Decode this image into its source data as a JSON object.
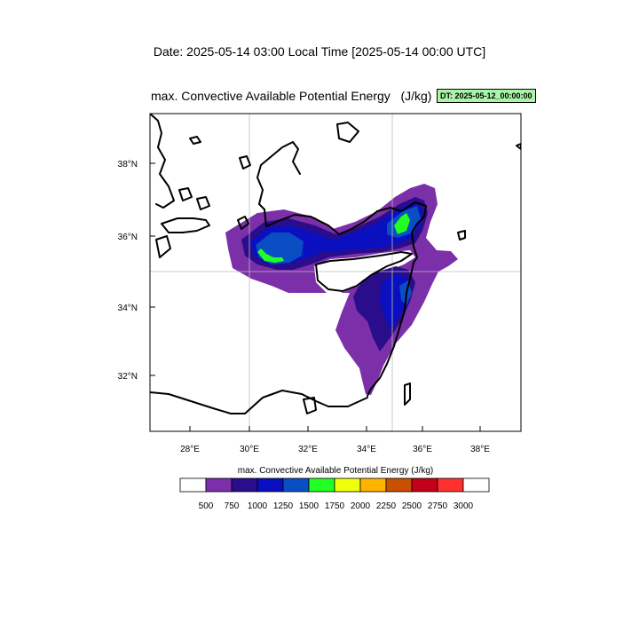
{
  "header": {
    "date_line": "Date: 2025-05-14  03:00 Local Time [2025-05-14  00:00 UTC]"
  },
  "plot": {
    "title": "max. Convective Available Potential Energy   (J/kg)",
    "badge": "DT: 2025-05-12_00:00:00"
  },
  "axes": {
    "lon_ticks": [
      "28°E",
      "30°E",
      "32°E",
      "34°E",
      "36°E",
      "38°E"
    ],
    "lat_ticks": [
      "38°N",
      "36°N",
      "34°N",
      "32°N"
    ],
    "grid_lons": [
      "30°E",
      "35°E"
    ],
    "grid_lats": [
      "35°N"
    ]
  },
  "colorbar": {
    "title": "max. Convective Available Potential Energy  (J/kg)",
    "labels": [
      "500",
      "750",
      "1000",
      "1250",
      "1500",
      "1750",
      "2000",
      "2250",
      "2500",
      "2750",
      "3000"
    ],
    "colors": [
      "#ffffff",
      "#7b2fa8",
      "#2a0d8a",
      "#0a10c0",
      "#0a4ec4",
      "#22ff22",
      "#f0ff0a",
      "#ffb400",
      "#c85000",
      "#c40018",
      "#ff3030",
      "#ffffff"
    ]
  },
  "fill_colors": {
    "level_500": "#7b2fa8",
    "level_750": "#2a0d8a",
    "level_1000": "#0a10c0",
    "level_1250": "#0a4ec4",
    "level_1500": "#22ff22",
    "land_border": "#000000"
  }
}
